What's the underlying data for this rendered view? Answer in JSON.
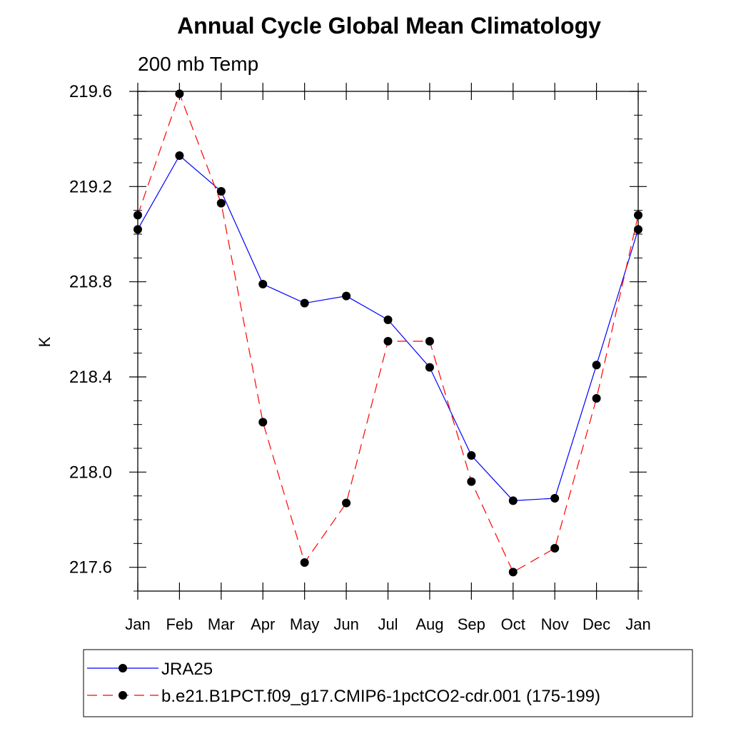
{
  "chart_data": {
    "type": "line",
    "title": "Annual Cycle Global Mean Climatology",
    "subtitle": "200 mb Temp",
    "xlabel": "",
    "ylabel": "K",
    "categories": [
      "Jan",
      "Feb",
      "Mar",
      "Apr",
      "May",
      "Jun",
      "Jul",
      "Aug",
      "Sep",
      "Oct",
      "Nov",
      "Dec",
      "Jan"
    ],
    "ylim": [
      217.5,
      219.6
    ],
    "yticks": [
      "219.6",
      "219.2",
      "218.8",
      "218.4",
      "218.0",
      "217.6"
    ],
    "ytick_values": [
      219.6,
      219.2,
      218.8,
      218.4,
      218.0,
      217.6
    ],
    "minor_tick_step": 0.1,
    "grid": false,
    "legend_position": "bottom",
    "series": [
      {
        "name": "JRA25",
        "color": "#0000ff",
        "style": "solid",
        "marker": "filled-circle",
        "values": [
          219.02,
          219.33,
          219.18,
          218.79,
          218.71,
          218.74,
          218.64,
          218.44,
          218.07,
          217.88,
          217.89,
          218.45,
          219.02
        ]
      },
      {
        "name": "b.e21.B1PCT.f09_g17.CMIP6-1pctCO2-cdr.001 (175-199)",
        "color": "#ff0000",
        "style": "dashed",
        "marker": "filled-circle",
        "values": [
          219.08,
          219.59,
          219.13,
          218.21,
          217.62,
          217.87,
          218.55,
          218.55,
          217.96,
          217.58,
          217.68,
          218.31,
          219.08
        ]
      }
    ]
  }
}
